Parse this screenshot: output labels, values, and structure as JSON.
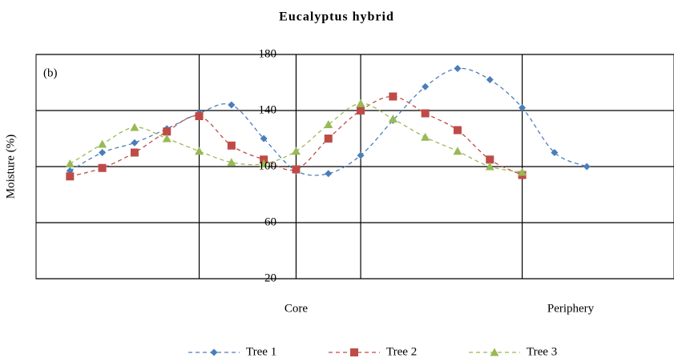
{
  "chart_data": {
    "type": "line",
    "title": "Eucalyptus hybrid",
    "annotation": "(b)",
    "ylabel": "Moisture (%)",
    "x": [
      0,
      1,
      2,
      3,
      4,
      5,
      6,
      7,
      8,
      9,
      10,
      11,
      12,
      13,
      14,
      15,
      16
    ],
    "xlim": [
      -1.05,
      18.7
    ],
    "xgrid": [
      4,
      7,
      9,
      14
    ],
    "x_labels": [
      {
        "text": "Core",
        "x": 7
      },
      {
        "text": "Periphery",
        "x": 15.5
      }
    ],
    "ylim": [
      20,
      180
    ],
    "yticks": [
      20,
      60,
      100,
      140,
      180
    ],
    "grid": true,
    "legend": "bottom",
    "series": [
      {
        "name": "Tree 1",
        "color": "#4a7ebb",
        "marker": "diamond",
        "values": [
          97,
          110,
          117,
          127,
          138,
          144,
          120,
          97,
          95,
          108,
          133,
          157,
          170,
          162,
          142,
          110,
          100
        ]
      },
      {
        "name": "Tree 2",
        "color": "#be4b48",
        "marker": "square",
        "values": [
          93,
          99,
          110,
          125,
          136,
          115,
          105,
          98,
          120,
          140,
          150,
          138,
          126,
          105,
          94,
          null,
          null
        ]
      },
      {
        "name": "Tree 3",
        "color": "#98b954",
        "marker": "triangle",
        "values": [
          102,
          116,
          128,
          120,
          111,
          103,
          102,
          111,
          130,
          145,
          134,
          121,
          111,
          100,
          96,
          null,
          null
        ]
      }
    ]
  }
}
